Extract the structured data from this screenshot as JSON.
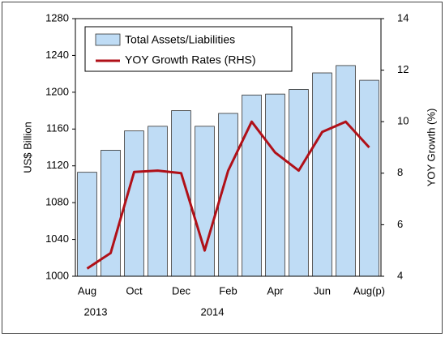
{
  "chart_data": {
    "type": "bar_line",
    "categories": [
      "Aug",
      null,
      "Oct",
      null,
      "Dec",
      null,
      "Feb",
      null,
      "Apr",
      null,
      "Jun",
      null,
      "Aug(p)"
    ],
    "series": [
      {
        "name": "Total Assets/Liabilities",
        "color": "#bfdcf5",
        "values": [
          1113,
          1137,
          1158,
          1163,
          1180,
          1163,
          1177,
          1197,
          1198,
          1203,
          1221,
          1229,
          1213
        ]
      },
      {
        "name": "YOY Growth Rates (RHS)",
        "color": "#b01018",
        "axis": "y2",
        "values": [
          4.3,
          4.9,
          8.05,
          8.1,
          8.0,
          5.0,
          8.1,
          10.0,
          8.8,
          8.1,
          9.6,
          10.0,
          9.0
        ]
      }
    ],
    "ylabel": "US$ Billion",
    "y2label": "YOY Growth (%)",
    "ylim": [
      1000,
      1280
    ],
    "yticks": [
      1000,
      1040,
      1080,
      1120,
      1160,
      1200,
      1240,
      1280
    ],
    "y2lim": [
      4,
      14
    ],
    "y2ticks": [
      4,
      6,
      8,
      10,
      12,
      14
    ],
    "annotations": [
      "2013",
      "2014"
    ],
    "legend": "upper left"
  }
}
